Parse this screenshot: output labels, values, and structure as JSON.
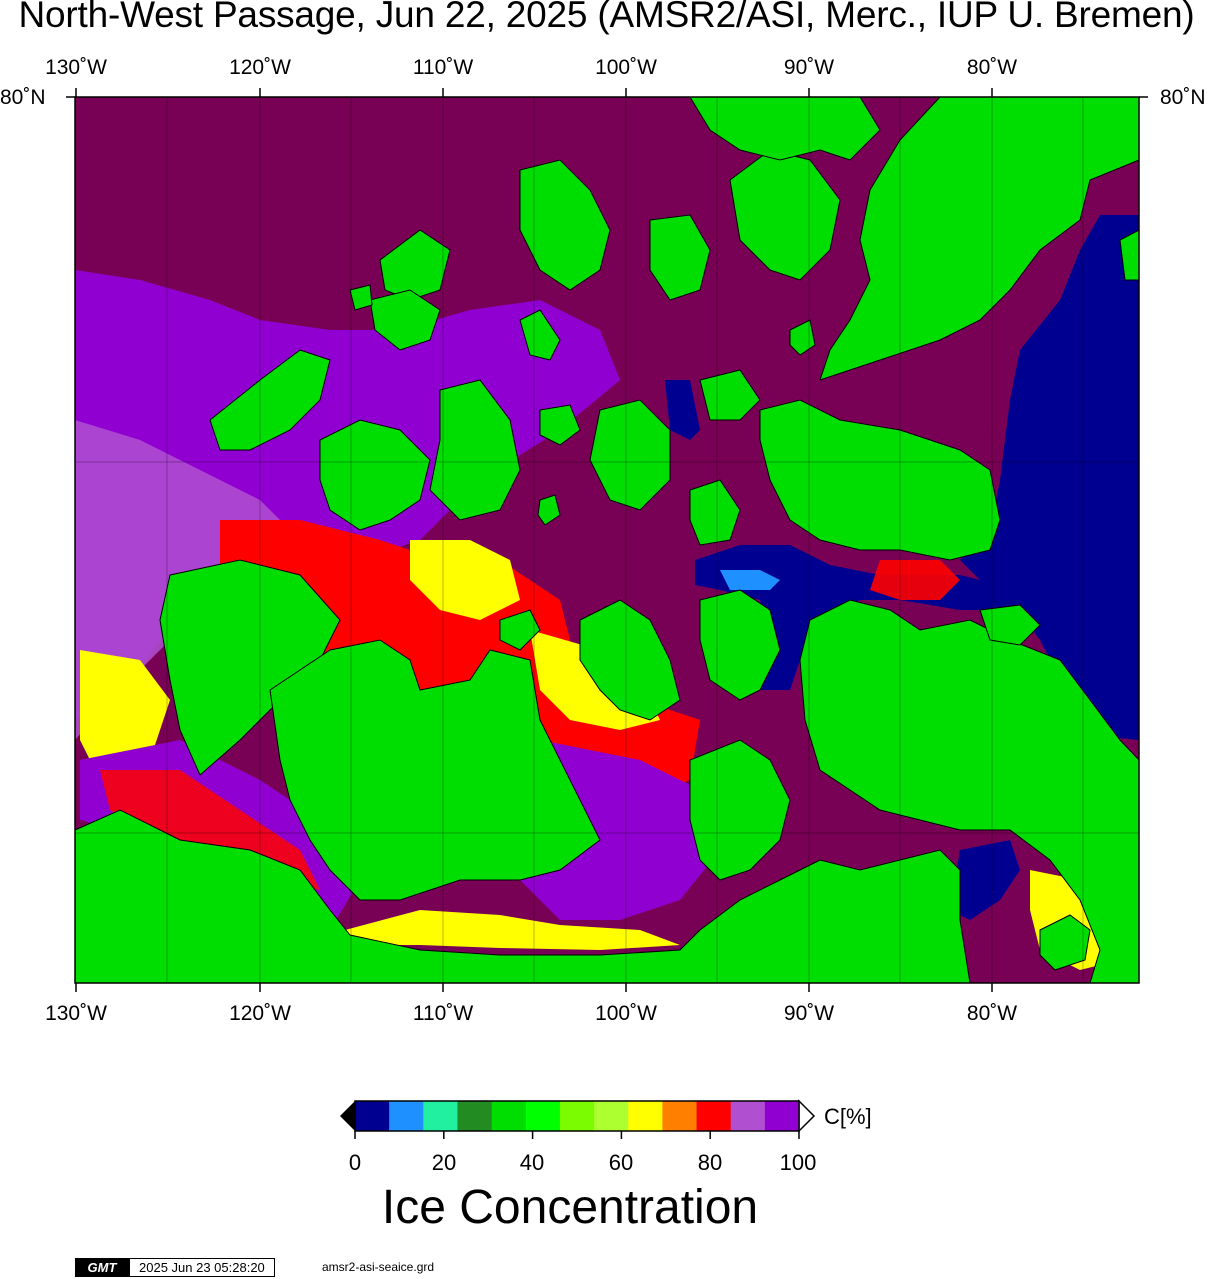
{
  "header": {
    "title": "North-West Passage, Jun 22, 2025 (AMSR2/ASI, Merc., IUP U. Bremen)"
  },
  "map": {
    "lon_ticks": [
      "130˚W",
      "120˚W",
      "110˚W",
      "100˚W",
      "90˚W",
      "80˚W"
    ],
    "lat_labels": {
      "left": "80˚N",
      "right": "80˚N"
    },
    "colors": {
      "land": "#00dd00",
      "ice_high": "#780055",
      "open_water": "#000090",
      "coast": "#000000"
    }
  },
  "colorbar": {
    "colors": [
      "#000090",
      "#1e90ff",
      "#20f0a0",
      "#228b22",
      "#00dd00",
      "#00ff00",
      "#7cfc00",
      "#adff2f",
      "#ffff00",
      "#ff7f00",
      "#ff0000",
      "#b050d0",
      "#9000d0"
    ],
    "tick_labels": [
      "0",
      "20",
      "40",
      "60",
      "80",
      "100"
    ],
    "unit": "C[%]",
    "title": "Ice Concentration"
  },
  "footer": {
    "logo": "GMT",
    "timestamp": "2025 Jun 23 05:28:20",
    "filename": "amsr2-asi-seaice.grd"
  }
}
